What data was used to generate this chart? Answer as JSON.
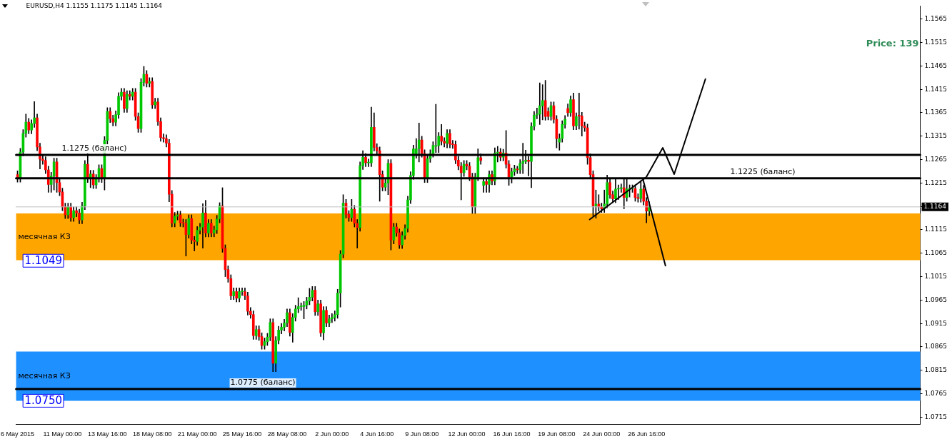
{
  "chart_data": {
    "type": "candlestick",
    "title": "EURUSD,H4 1.1155 1.1175 1.1145 1.1164",
    "categories": [
      "6 May 2015",
      null,
      null,
      null,
      null,
      null,
      null,
      null,
      null,
      null,
      null,
      null,
      null,
      null,
      null,
      null,
      "11 May 00:00",
      null,
      null,
      null,
      null,
      null,
      null,
      null,
      null,
      null,
      null,
      null,
      null,
      null,
      null,
      null,
      "13 May 16:00",
      null,
      null,
      null,
      null,
      null,
      null,
      null,
      null,
      null,
      null,
      null,
      null,
      null,
      null,
      null,
      "18 May 08:00",
      null,
      null,
      null,
      null,
      null,
      null,
      null,
      null,
      null,
      null,
      null,
      null,
      null,
      null,
      null,
      "21 May 00:00",
      null,
      null,
      null,
      null,
      null,
      null,
      null,
      null,
      null,
      null,
      null,
      null,
      null,
      null,
      null,
      "25 May 16:00",
      null,
      null,
      null,
      null,
      null,
      null,
      null,
      null,
      null,
      null,
      null,
      null,
      null,
      null,
      null,
      "28 May 08:00",
      null,
      null,
      null,
      null,
      null,
      null,
      null,
      null,
      null,
      null,
      null,
      null,
      null,
      null,
      null,
      "2 Jun 00:00",
      null,
      null,
      null,
      null,
      null,
      null,
      null,
      null,
      null,
      null,
      null,
      null,
      null,
      null,
      null,
      "4 Jun 16:00",
      null,
      null,
      null,
      null,
      null,
      null,
      null,
      null,
      null,
      null,
      null,
      null,
      null,
      null,
      null,
      "9 Jun 08:00",
      null,
      null,
      null,
      null,
      null,
      null,
      null,
      null,
      null,
      null,
      null,
      null,
      null,
      null,
      null,
      "12 Jun 00:00",
      null,
      null,
      null,
      null,
      null,
      null,
      null,
      null,
      null,
      null,
      null,
      null,
      null,
      null,
      null,
      "16 Jun 16:00",
      null,
      null,
      null,
      null,
      null,
      null,
      null,
      null,
      null,
      null,
      null,
      null,
      null,
      null,
      null,
      "19 Jun 08:00",
      null,
      null,
      null,
      null,
      null,
      null,
      null,
      null,
      null,
      null,
      null,
      null,
      null,
      null,
      null,
      "24 Jun 00:00",
      null,
      null,
      null,
      null,
      null,
      null,
      null,
      null,
      null,
      null,
      null,
      null,
      null,
      null,
      null,
      "26 Jun 16:00",
      null,
      null,
      null,
      null,
      null,
      null,
      null,
      null,
      null,
      null,
      null,
      null,
      null,
      null,
      null,
      null,
      null,
      null,
      null,
      null,
      null,
      null,
      null,
      null,
      null,
      null,
      null,
      null,
      null,
      null,
      null,
      null,
      null,
      null,
      null,
      null,
      null,
      null,
      null,
      null,
      null,
      null,
      null,
      null,
      null,
      null,
      null,
      null,
      null,
      null,
      null,
      null,
      null,
      null,
      null,
      null,
      null,
      null,
      null,
      null,
      null,
      null,
      null,
      null,
      null,
      null,
      null,
      null,
      null,
      null,
      null,
      null,
      null,
      null,
      null,
      null,
      null,
      null,
      null,
      null,
      null,
      null,
      null,
      null,
      null,
      null,
      null,
      null,
      null,
      null,
      null,
      null,
      null,
      null,
      null,
      null,
      null
    ],
    "ohlc": [
      [
        1.1233,
        1.1241,
        1.1217,
        1.1225
      ],
      [
        1.1225,
        1.1289,
        1.1217,
        1.1281
      ],
      [
        1.1281,
        1.1329,
        1.1273,
        1.1321
      ],
      [
        1.1321,
        1.1362,
        1.1313,
        1.1345
      ],
      [
        1.1345,
        1.1353,
        1.132,
        1.1328
      ],
      [
        1.1328,
        1.135,
        1.132,
        1.1342
      ],
      [
        1.1342,
        1.1389,
        1.1334,
        1.1354
      ],
      [
        1.1354,
        1.1362,
        1.1284,
        1.1292
      ],
      [
        1.1292,
        1.13,
        1.1245,
        1.1266
      ],
      [
        1.1266,
        1.1274,
        1.1255,
        1.1263
      ],
      [
        1.1263,
        1.1271,
        1.1235,
        1.1243
      ],
      [
        1.1243,
        1.1251,
        1.1195,
        1.1212
      ],
      [
        1.1212,
        1.1238,
        1.1195,
        1.123
      ],
      [
        1.123,
        1.1268,
        1.12,
        1.126
      ],
      [
        1.126,
        1.1268,
        1.1195,
        1.1216
      ],
      [
        1.1216,
        1.1224,
        1.1188,
        1.1196
      ],
      [
        1.1196,
        1.1204,
        1.1156,
        1.1164
      ],
      [
        1.1164,
        1.1172,
        1.1139,
        1.1147
      ],
      [
        1.1147,
        1.1172,
        1.1139,
        1.1164
      ],
      [
        1.1164,
        1.1172,
        1.1133,
        1.1141
      ],
      [
        1.1141,
        1.1164,
        1.1133,
        1.1156
      ],
      [
        1.1156,
        1.1164,
        1.1143,
        1.1151
      ],
      [
        1.1151,
        1.1159,
        1.1128,
        1.1136
      ],
      [
        1.1136,
        1.1174,
        1.1128,
        1.1166
      ],
      [
        1.1166,
        1.1263,
        1.1158,
        1.1255
      ],
      [
        1.1255,
        1.1278,
        1.1216,
        1.1224
      ],
      [
        1.1224,
        1.1242,
        1.1205,
        1.1234
      ],
      [
        1.1234,
        1.1242,
        1.1203,
        1.1211
      ],
      [
        1.1211,
        1.1233,
        1.1203,
        1.1225
      ],
      [
        1.1225,
        1.1254,
        1.1217,
        1.1246
      ],
      [
        1.1246,
        1.1254,
        1.1216,
        1.1224
      ],
      [
        1.1224,
        1.1314,
        1.12,
        1.1306
      ],
      [
        1.1306,
        1.1376,
        1.1298,
        1.1368
      ],
      [
        1.1368,
        1.1376,
        1.1344,
        1.1352
      ],
      [
        1.1352,
        1.136,
        1.1337,
        1.1345
      ],
      [
        1.1345,
        1.1369,
        1.1337,
        1.1361
      ],
      [
        1.1361,
        1.1408,
        1.1353,
        1.14
      ],
      [
        1.14,
        1.1417,
        1.1392,
        1.1409
      ],
      [
        1.1409,
        1.1417,
        1.1366,
        1.1374
      ],
      [
        1.1374,
        1.1412,
        1.1366,
        1.1404
      ],
      [
        1.1404,
        1.1412,
        1.1392,
        1.14
      ],
      [
        1.14,
        1.1417,
        1.1392,
        1.1409
      ],
      [
        1.1409,
        1.1417,
        1.1349,
        1.1357
      ],
      [
        1.1357,
        1.1365,
        1.1323,
        1.1331
      ],
      [
        1.1331,
        1.1438,
        1.1323,
        1.143
      ],
      [
        1.143,
        1.1464,
        1.1422,
        1.1447
      ],
      [
        1.1447,
        1.1455,
        1.142,
        1.1428
      ],
      [
        1.1428,
        1.144,
        1.142,
        1.1432
      ],
      [
        1.1432,
        1.144,
        1.1374,
        1.1382
      ],
      [
        1.1382,
        1.1396,
        1.1374,
        1.1388
      ],
      [
        1.1388,
        1.1396,
        1.1338,
        1.1346
      ],
      [
        1.1346,
        1.1354,
        1.1304,
        1.1312
      ],
      [
        1.1312,
        1.132,
        1.1302,
        1.131
      ],
      [
        1.131,
        1.1318,
        1.1292,
        1.13
      ],
      [
        1.13,
        1.1308,
        1.1175,
        1.1191
      ],
      [
        1.1191,
        1.1199,
        1.1121,
        1.1129
      ],
      [
        1.1129,
        1.1152,
        1.1121,
        1.1144
      ],
      [
        1.1144,
        1.1155,
        1.1136,
        1.1147
      ],
      [
        1.1147,
        1.1155,
        1.1122,
        1.113
      ],
      [
        1.113,
        1.1138,
        1.1121,
        1.1129
      ],
      [
        1.1129,
        1.1137,
        1.1059,
        1.1105
      ],
      [
        1.1105,
        1.1147,
        1.1097,
        1.1139
      ],
      [
        1.1139,
        1.1147,
        1.1085,
        1.1093
      ],
      [
        1.1093,
        1.1101,
        1.107,
        1.109
      ],
      [
        1.109,
        1.1122,
        1.1082,
        1.1114
      ],
      [
        1.1114,
        1.1129,
        1.1106,
        1.1121
      ],
      [
        1.1121,
        1.1171,
        1.1076,
        1.1151
      ],
      [
        1.1151,
        1.1178,
        1.11,
        1.1108
      ],
      [
        1.1108,
        1.1137,
        1.11,
        1.1129
      ],
      [
        1.1129,
        1.1137,
        1.11,
        1.1108
      ],
      [
        1.1108,
        1.1123,
        1.11,
        1.1115
      ],
      [
        1.1115,
        1.1146,
        1.1107,
        1.1138
      ],
      [
        1.1138,
        1.1173,
        1.113,
        1.1166
      ],
      [
        1.1166,
        1.1205,
        1.1067,
        1.1075
      ],
      [
        1.1075,
        1.1083,
        1.1015,
        1.103
      ],
      [
        1.103,
        1.1038,
        1.1003,
        1.1011
      ],
      [
        1.1011,
        1.1019,
        1.0966,
        1.0974
      ],
      [
        1.0974,
        1.0991,
        1.0966,
        1.0983
      ],
      [
        1.0983,
        1.0991,
        1.0961,
        1.0969
      ],
      [
        1.0969,
        1.0991,
        1.0961,
        1.0983
      ],
      [
        1.0983,
        1.0991,
        1.0975,
        1.0983
      ],
      [
        1.0983,
        1.0991,
        1.0966,
        1.0974
      ],
      [
        1.0974,
        1.0982,
        1.0933,
        1.0941
      ],
      [
        1.0941,
        1.0949,
        1.0926,
        1.0934
      ],
      [
        1.0934,
        1.0942,
        1.0881,
        1.0889
      ],
      [
        1.0889,
        1.091,
        1.0881,
        1.0902
      ],
      [
        1.0902,
        1.091,
        1.0879,
        1.0887
      ],
      [
        1.0887,
        1.0895,
        1.086,
        1.0868
      ],
      [
        1.0868,
        1.0884,
        1.086,
        1.0876
      ],
      [
        1.0876,
        1.0894,
        1.0868,
        1.0886
      ],
      [
        1.0886,
        1.0925,
        1.0878,
        1.0917
      ],
      [
        1.0917,
        1.0925,
        1.0812,
        1.083
      ],
      [
        1.083,
        1.0887,
        1.0812,
        1.0879
      ],
      [
        1.0879,
        1.0909,
        1.0871,
        1.0901
      ],
      [
        1.0901,
        1.0915,
        1.0893,
        1.0907
      ],
      [
        1.0907,
        1.0924,
        1.0899,
        1.0916
      ],
      [
        1.0916,
        1.0946,
        1.0908,
        1.0938
      ],
      [
        1.0938,
        1.0946,
        1.0888,
        1.0896
      ],
      [
        1.0896,
        1.0936,
        1.0875,
        1.0928
      ],
      [
        1.0928,
        1.0954,
        1.092,
        1.0946
      ],
      [
        1.0946,
        1.097,
        1.0938,
        1.0951
      ],
      [
        1.0951,
        1.0959,
        1.0943,
        1.0951
      ],
      [
        1.0951,
        1.0962,
        1.0925,
        1.0954
      ],
      [
        1.0954,
        1.0971,
        1.0946,
        1.0963
      ],
      [
        1.0963,
        1.099,
        1.0955,
        1.0971
      ],
      [
        1.0971,
        1.0994,
        1.0963,
        1.0986
      ],
      [
        1.0986,
        1.0994,
        1.0932,
        1.094
      ],
      [
        1.094,
        1.0965,
        1.0932,
        1.0957
      ],
      [
        1.0957,
        1.0965,
        1.0887,
        1.0895
      ],
      [
        1.0895,
        1.0951,
        1.088,
        1.0943
      ],
      [
        1.0943,
        1.0951,
        1.0908,
        1.0916
      ],
      [
        1.0916,
        1.0933,
        1.0908,
        1.0925
      ],
      [
        1.0925,
        1.0936,
        1.0917,
        1.0928
      ],
      [
        1.0928,
        1.0942,
        1.092,
        1.0934
      ],
      [
        1.0934,
        1.0988,
        1.0926,
        1.098
      ],
      [
        1.098,
        1.1071,
        1.095,
        1.1063
      ],
      [
        1.1063,
        1.119,
        1.1055,
        1.1172
      ],
      [
        1.1172,
        1.118,
        1.114,
        1.1148
      ],
      [
        1.1148,
        1.1156,
        1.1133,
        1.1141
      ],
      [
        1.1141,
        1.118,
        1.1133,
        1.1159
      ],
      [
        1.1159,
        1.1167,
        1.1121,
        1.1129
      ],
      [
        1.1129,
        1.1137,
        1.1076,
        1.112
      ],
      [
        1.112,
        1.126,
        1.1112,
        1.1252
      ],
      [
        1.1252,
        1.1284,
        1.1244,
        1.127
      ],
      [
        1.127,
        1.1278,
        1.125,
        1.1258
      ],
      [
        1.1258,
        1.1266,
        1.125,
        1.1258
      ],
      [
        1.1258,
        1.1377,
        1.125,
        1.1334
      ],
      [
        1.1334,
        1.1365,
        1.1283,
        1.1291
      ],
      [
        1.1291,
        1.1299,
        1.1276,
        1.1284
      ],
      [
        1.1284,
        1.1292,
        1.1176,
        1.1233
      ],
      [
        1.1233,
        1.1241,
        1.1198,
        1.1206
      ],
      [
        1.1206,
        1.1223,
        1.1198,
        1.1215
      ],
      [
        1.1215,
        1.1265,
        1.119,
        1.1257
      ],
      [
        1.1257,
        1.1265,
        1.1072,
        1.1093
      ],
      [
        1.1093,
        1.1129,
        1.1085,
        1.1121
      ],
      [
        1.1121,
        1.1129,
        1.1101,
        1.1109
      ],
      [
        1.1109,
        1.1117,
        1.1075,
        1.1083
      ],
      [
        1.1083,
        1.1111,
        1.1075,
        1.1103
      ],
      [
        1.1103,
        1.1126,
        1.1095,
        1.1118
      ],
      [
        1.1118,
        1.1187,
        1.111,
        1.1179
      ],
      [
        1.1179,
        1.1239,
        1.1171,
        1.1231
      ],
      [
        1.1231,
        1.1296,
        1.1223,
        1.1288
      ],
      [
        1.1276,
        1.131,
        1.1268,
        1.1288
      ],
      [
        1.1288,
        1.1343,
        1.126,
        1.1307
      ],
      [
        1.1307,
        1.1315,
        1.127,
        1.1278
      ],
      [
        1.1278,
        1.1286,
        1.1216,
        1.1224
      ],
      [
        1.1224,
        1.1275,
        1.1216,
        1.1267
      ],
      [
        1.1267,
        1.1286,
        1.1259,
        1.1278
      ],
      [
        1.1278,
        1.1303,
        1.127,
        1.1295
      ],
      [
        1.1293,
        1.1383,
        1.128,
        1.1295
      ],
      [
        1.1295,
        1.1323,
        1.128,
        1.1315
      ],
      [
        1.1315,
        1.134,
        1.1296,
        1.1304
      ],
      [
        1.1304,
        1.1312,
        1.1292,
        1.13
      ],
      [
        1.13,
        1.1329,
        1.129,
        1.1321
      ],
      [
        1.1321,
        1.1329,
        1.129,
        1.1298
      ],
      [
        1.1298,
        1.1306,
        1.1289,
        1.1297
      ],
      [
        1.1297,
        1.1305,
        1.1256,
        1.1264
      ],
      [
        1.1264,
        1.1272,
        1.1243,
        1.1251
      ],
      [
        1.1251,
        1.1259,
        1.1179,
        1.1237
      ],
      [
        1.1237,
        1.1263,
        1.1229,
        1.1255
      ],
      [
        1.1255,
        1.1263,
        1.1243,
        1.1251
      ],
      [
        1.1251,
        1.1259,
        1.122,
        1.1228
      ],
      [
        1.1228,
        1.1236,
        1.115,
        1.1164
      ],
      [
        1.1164,
        1.1236,
        1.115,
        1.1228
      ],
      [
        1.1228,
        1.1288,
        1.122,
        1.1269
      ],
      [
        1.1269,
        1.1277,
        1.1255,
        1.1263
      ],
      [
        1.121,
        1.1226,
        1.1195,
        1.1218
      ],
      [
        1.1218,
        1.1226,
        1.1195,
        1.1212
      ],
      [
        1.1212,
        1.1241,
        1.1195,
        1.1233
      ],
      [
        1.1233,
        1.1241,
        1.1211,
        1.1219
      ],
      [
        1.1219,
        1.129,
        1.1211,
        1.1279
      ],
      [
        1.1279,
        1.1293,
        1.126,
        1.1281
      ],
      [
        1.1281,
        1.1289,
        1.1262,
        1.127
      ],
      [
        1.127,
        1.1287,
        1.1262,
        1.1279
      ],
      [
        1.1279,
        1.1327,
        1.1247,
        1.1255
      ],
      [
        1.1255,
        1.1263,
        1.121,
        1.1228
      ],
      [
        1.1228,
        1.1247,
        1.1215,
        1.1239
      ],
      [
        1.1239,
        1.1253,
        1.1231,
        1.1245
      ],
      [
        1.1245,
        1.1251,
        1.1235,
        1.1243
      ],
      [
        1.1243,
        1.1265,
        1.1235,
        1.1257
      ],
      [
        1.1257,
        1.13,
        1.1235,
        1.1261
      ],
      [
        1.1261,
        1.1285,
        1.1256,
        1.1264
      ],
      [
        1.1264,
        1.1272,
        1.123,
        1.1261
      ],
      [
        1.1261,
        1.1344,
        1.1205,
        1.1336
      ],
      [
        1.1336,
        1.1368,
        1.1328,
        1.136
      ],
      [
        1.136,
        1.1375,
        1.1352,
        1.1362
      ],
      [
        1.1362,
        1.1429,
        1.134,
        1.138
      ],
      [
        1.138,
        1.1425,
        1.135,
        1.1391
      ],
      [
        1.1391,
        1.1434,
        1.1349,
        1.1357
      ],
      [
        1.1368,
        1.1376,
        1.135,
        1.1357
      ],
      [
        1.1357,
        1.1388,
        1.1349,
        1.138
      ],
      [
        1.138,
        1.1388,
        1.1343,
        1.1351
      ],
      [
        1.1351,
        1.1359,
        1.129,
        1.131
      ],
      [
        1.1302,
        1.132,
        1.1285,
        1.131
      ],
      [
        1.131,
        1.1348,
        1.1302,
        1.134
      ],
      [
        1.134,
        1.1359,
        1.1332,
        1.1351
      ],
      [
        1.1374,
        1.1384,
        1.1357,
        1.1365
      ],
      [
        1.1365,
        1.1401,
        1.1357,
        1.1393
      ],
      [
        1.1393,
        1.1407,
        1.1329,
        1.1337
      ],
      [
        1.1337,
        1.1365,
        1.1329,
        1.1357
      ],
      [
        1.136,
        1.1407,
        1.133,
        1.1358
      ],
      [
        1.1358,
        1.1366,
        1.1315,
        1.1337
      ],
      [
        1.1337,
        1.1345,
        1.1325,
        1.1333
      ],
      [
        1.1333,
        1.1341,
        1.1255,
        1.1269
      ],
      [
        1.1269,
        1.1277,
        1.1225,
        1.1233
      ],
      [
        1.1233,
        1.1241,
        1.1145,
        1.1166
      ],
      [
        1.1166,
        1.12,
        1.114,
        1.117
      ],
      [
        1.117,
        1.119,
        1.1155,
        1.1164
      ],
      [
        1.1164,
        1.1172,
        1.1152,
        1.116
      ],
      [
        1.116,
        1.12,
        1.1152,
        1.117
      ],
      [
        1.117,
        1.1232,
        1.1162,
        1.1216
      ],
      [
        1.1216,
        1.1224,
        1.1182,
        1.119
      ],
      [
        1.119,
        1.1198,
        1.1173,
        1.1181
      ],
      [
        1.1181,
        1.1225,
        1.1173,
        1.1202
      ],
      [
        1.1202,
        1.1211,
        1.118,
        1.1203
      ],
      [
        1.1203,
        1.1213,
        1.1195,
        1.1205
      ],
      [
        1.1205,
        1.1225,
        1.116,
        1.1184
      ],
      [
        1.1184,
        1.1225,
        1.1176,
        1.1202
      ],
      [
        1.1202,
        1.1211,
        1.1185,
        1.1203
      ],
      [
        1.1203,
        1.1211,
        1.1195,
        1.1203
      ],
      [
        1.1203,
        1.1211,
        1.1176,
        1.1184
      ],
      [
        1.1184,
        1.1192,
        1.1174,
        1.1182
      ],
      [
        1.1182,
        1.122,
        1.1174,
        1.1202
      ],
      [
        1.1202,
        1.121,
        1.1168,
        1.1176
      ],
      [
        1.1176,
        1.1184,
        1.113,
        1.1155
      ],
      [
        1.1155,
        1.1175,
        1.1145,
        1.1164
      ],
      null,
      null,
      null,
      null,
      null,
      null,
      null,
      null,
      null,
      null,
      null,
      null,
      null,
      null,
      null,
      null,
      null,
      null,
      null,
      null,
      null,
      null,
      null,
      null,
      null,
      null,
      null,
      null,
      null,
      null,
      null,
      null,
      null,
      null,
      null,
      null,
      null,
      null,
      null,
      null,
      null,
      null,
      null,
      null,
      null,
      null,
      null,
      null,
      null,
      null,
      null,
      null,
      null,
      null,
      null,
      null,
      null,
      null,
      null,
      null,
      null,
      null,
      null,
      null,
      null,
      null,
      null,
      null,
      null,
      null,
      null,
      null,
      null,
      null,
      null,
      null,
      null,
      null,
      null,
      null,
      null,
      null,
      null,
      null,
      null,
      null,
      null,
      null,
      null,
      null,
      null,
      null,
      null,
      null,
      null,
      null
    ],
    "ylim": [
      1.07,
      1.1593
    ],
    "yticks": [
      1.0715,
      1.0765,
      1.0815,
      1.0865,
      1.0915,
      1.0965,
      1.1015,
      1.1065,
      1.1115,
      {
        "value": 1.1165,
        "label": null
      },
      1.1215,
      1.1265,
      1.1315,
      1.1365,
      1.1415,
      1.1465,
      1.1515,
      1.1565
    ],
    "grid": false,
    "legend": false,
    "ref_lines": [
      {
        "axis": "y",
        "value": 1.1275,
        "label": "1.1275 (баланс)"
      },
      {
        "axis": "y",
        "value": 1.1225,
        "label": "1.1225 (баланс)"
      },
      {
        "axis": "y",
        "value": 1.0775,
        "label": "1.0775 (баланс)"
      },
      {
        "axis": "y",
        "value": 1.1164,
        "label": "1.1164",
        "color": "#c0c0c0"
      }
    ],
    "bands": [
      {
        "axis": "y",
        "from": 1.105,
        "to": 1.115,
        "label": "месячная КЗ",
        "color": "#ffa500"
      },
      {
        "axis": "y",
        "from": 1.075,
        "to": 1.0855,
        "label": "месячная КЗ",
        "color": "#1e90ff"
      }
    ],
    "annotations": [
      "Price: 139",
      {
        "text": "1.1049",
        "y": 1.1049
      },
      {
        "text": "1.0750",
        "y": 1.075
      }
    ]
  }
}
